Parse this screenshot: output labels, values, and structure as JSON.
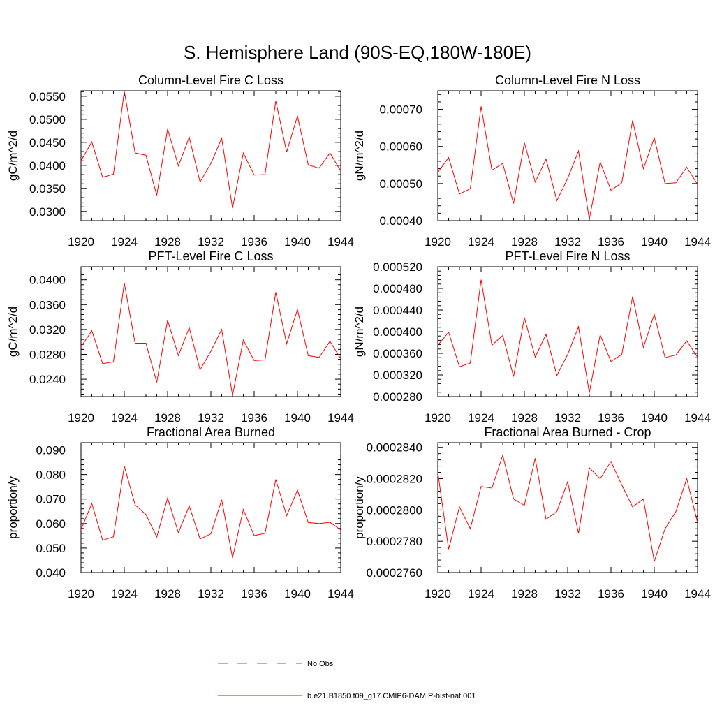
{
  "title": "S. Hemisphere Land (90S-EQ,180W-180E)",
  "legend": {
    "obs_label": "No Obs",
    "obs_color": "#5a5ae0",
    "model_label": "b.e21.B1850.f09_g17.CMIP6-DAMIP-hist-nat.001",
    "model_color": "#ff0000"
  },
  "chart_data": [
    {
      "type": "line",
      "title": "Column-Level Fire C Loss",
      "ylabel": "gC/m^2/d",
      "xlim": [
        1920,
        1944
      ],
      "ylim": [
        0.028,
        0.0562
      ],
      "xticks": [
        "1920",
        "1924",
        "1928",
        "1932",
        "1936",
        "1940",
        "1944"
      ],
      "yticks": [
        "0.0300",
        "0.0350",
        "0.0400",
        "0.0450",
        "0.0500",
        "0.0550"
      ],
      "x": [
        1920,
        1921,
        1922,
        1923,
        1924,
        1925,
        1926,
        1927,
        1928,
        1929,
        1930,
        1931,
        1932,
        1933,
        1934,
        1935,
        1936,
        1937,
        1938,
        1939,
        1940,
        1941,
        1942,
        1943,
        1944
      ],
      "series": [
        {
          "values": [
            0.041,
            0.0451,
            0.0374,
            0.0381,
            0.0561,
            0.0427,
            0.0422,
            0.0335,
            0.0479,
            0.0399,
            0.0461,
            0.0364,
            0.0404,
            0.0459,
            0.0307,
            0.0427,
            0.0379,
            0.038,
            0.054,
            0.0429,
            0.0507,
            0.0401,
            0.0394,
            0.0427,
            0.0388
          ]
        }
      ]
    },
    {
      "type": "line",
      "title": "Column-Level Fire N Loss",
      "ylabel": "gN/m^2/d",
      "xlim": [
        1920,
        1944
      ],
      "ylim": [
        0.0004,
        0.00075
      ],
      "xticks": [
        "1920",
        "1924",
        "1928",
        "1932",
        "1936",
        "1940",
        "1944"
      ],
      "yticks": [
        "0.00040",
        "0.00050",
        "0.00060",
        "0.00070"
      ],
      "x": [
        1920,
        1921,
        1922,
        1923,
        1924,
        1925,
        1926,
        1927,
        1928,
        1929,
        1930,
        1931,
        1932,
        1933,
        1934,
        1935,
        1936,
        1937,
        1938,
        1939,
        1940,
        1941,
        1942,
        1943,
        1944
      ],
      "series": [
        {
          "values": [
            0.00053,
            0.00057,
            0.000472,
            0.000486,
            0.000708,
            0.000536,
            0.000554,
            0.000446,
            0.00061,
            0.000504,
            0.000566,
            0.000454,
            0.000514,
            0.000588,
            0.000404,
            0.000558,
            0.000482,
            0.000502,
            0.00067,
            0.00054,
            0.000623,
            0.0005,
            0.000502,
            0.000544,
            0.000498
          ]
        }
      ]
    },
    {
      "type": "line",
      "title": "PFT-Level Fire C Loss",
      "ylabel": "gC/m^2/d",
      "xlim": [
        1920,
        1944
      ],
      "ylim": [
        0.0212,
        0.0421
      ],
      "xticks": [
        "1920",
        "1924",
        "1928",
        "1932",
        "1936",
        "1940",
        "1944"
      ],
      "yticks": [
        "0.0240",
        "0.0280",
        "0.0320",
        "0.0360",
        "0.0400"
      ],
      "x": [
        1920,
        1921,
        1922,
        1923,
        1924,
        1925,
        1926,
        1927,
        1928,
        1929,
        1930,
        1931,
        1932,
        1933,
        1934,
        1935,
        1936,
        1937,
        1938,
        1939,
        1940,
        1941,
        1942,
        1943,
        1944
      ],
      "series": [
        {
          "values": [
            0.0292,
            0.0318,
            0.0265,
            0.0268,
            0.0395,
            0.0298,
            0.0298,
            0.0235,
            0.0335,
            0.0278,
            0.0323,
            0.0255,
            0.0285,
            0.032,
            0.0214,
            0.0303,
            0.027,
            0.0271,
            0.038,
            0.0297,
            0.0352,
            0.0278,
            0.0275,
            0.0301,
            0.0273
          ]
        }
      ]
    },
    {
      "type": "line",
      "title": "PFT-Level Fire N Loss",
      "ylabel": "gN/m^2/d",
      "xlim": [
        1920,
        1944
      ],
      "ylim": [
        0.00028,
        0.00052
      ],
      "xticks": [
        "1920",
        "1924",
        "1928",
        "1932",
        "1936",
        "1940",
        "1944"
      ],
      "yticks": [
        "0.000280",
        "0.000320",
        "0.000360",
        "0.000400",
        "0.000440",
        "0.000480",
        "0.000520"
      ],
      "x": [
        1920,
        1921,
        1922,
        1923,
        1924,
        1925,
        1926,
        1927,
        1928,
        1929,
        1930,
        1931,
        1932,
        1933,
        1934,
        1935,
        1936,
        1937,
        1938,
        1939,
        1940,
        1941,
        1942,
        1943,
        1944
      ],
      "series": [
        {
          "values": [
            0.000375,
            0.000399,
            0.000335,
            0.000342,
            0.000496,
            0.000375,
            0.000393,
            0.000317,
            0.000426,
            0.000353,
            0.000395,
            0.000319,
            0.000358,
            0.000409,
            0.000287,
            0.000394,
            0.000345,
            0.000358,
            0.000465,
            0.000371,
            0.000432,
            0.000352,
            0.000357,
            0.000383,
            0.000353
          ]
        }
      ]
    },
    {
      "type": "line",
      "title": "Fractional Area Burned",
      "ylabel": "proportion/y",
      "xlim": [
        1920,
        1944
      ],
      "ylim": [
        0.04,
        0.093
      ],
      "xticks": [
        "1920",
        "1924",
        "1928",
        "1932",
        "1936",
        "1940",
        "1944"
      ],
      "yticks": [
        "0.040",
        "0.050",
        "0.060",
        "0.070",
        "0.080",
        "0.090"
      ],
      "x": [
        1920,
        1921,
        1922,
        1923,
        1924,
        1925,
        1926,
        1927,
        1928,
        1929,
        1930,
        1931,
        1932,
        1933,
        1934,
        1935,
        1936,
        1937,
        1938,
        1939,
        1940,
        1941,
        1942,
        1943,
        1944
      ],
      "series": [
        {
          "values": [
            0.0575,
            0.0682,
            0.0532,
            0.0546,
            0.0835,
            0.0676,
            0.0637,
            0.0545,
            0.0704,
            0.0563,
            0.0672,
            0.0537,
            0.0558,
            0.0697,
            0.046,
            0.0657,
            0.0551,
            0.056,
            0.078,
            0.0632,
            0.0736,
            0.0604,
            0.06,
            0.0605,
            0.0574
          ]
        }
      ]
    },
    {
      "type": "line",
      "title": "Fractional Area Burned - Crop",
      "ylabel": "proportion/y",
      "xlim": [
        1920,
        1944
      ],
      "ylim": [
        0.000276,
        0.0002843
      ],
      "xticks": [
        "1920",
        "1924",
        "1928",
        "1932",
        "1936",
        "1940",
        "1944"
      ],
      "yticks": [
        "0.0002760",
        "0.0002780",
        "0.0002800",
        "0.0002820",
        "0.0002840"
      ],
      "x": [
        1920,
        1921,
        1922,
        1923,
        1924,
        1925,
        1926,
        1927,
        1928,
        1929,
        1930,
        1931,
        1932,
        1933,
        1934,
        1935,
        1936,
        1937,
        1938,
        1939,
        1940,
        1941,
        1942,
        1943,
        1944
      ],
      "series": [
        {
          "values": [
            0.0002824,
            0.0002775,
            0.0002802,
            0.0002788,
            0.0002815,
            0.0002814,
            0.0002835,
            0.0002807,
            0.0002803,
            0.0002833,
            0.0002794,
            0.0002799,
            0.0002818,
            0.0002785,
            0.0002827,
            0.000282,
            0.0002831,
            0.0002816,
            0.0002802,
            0.0002807,
            0.0002767,
            0.0002788,
            0.0002799,
            0.000282,
            0.0002792
          ]
        }
      ]
    }
  ]
}
